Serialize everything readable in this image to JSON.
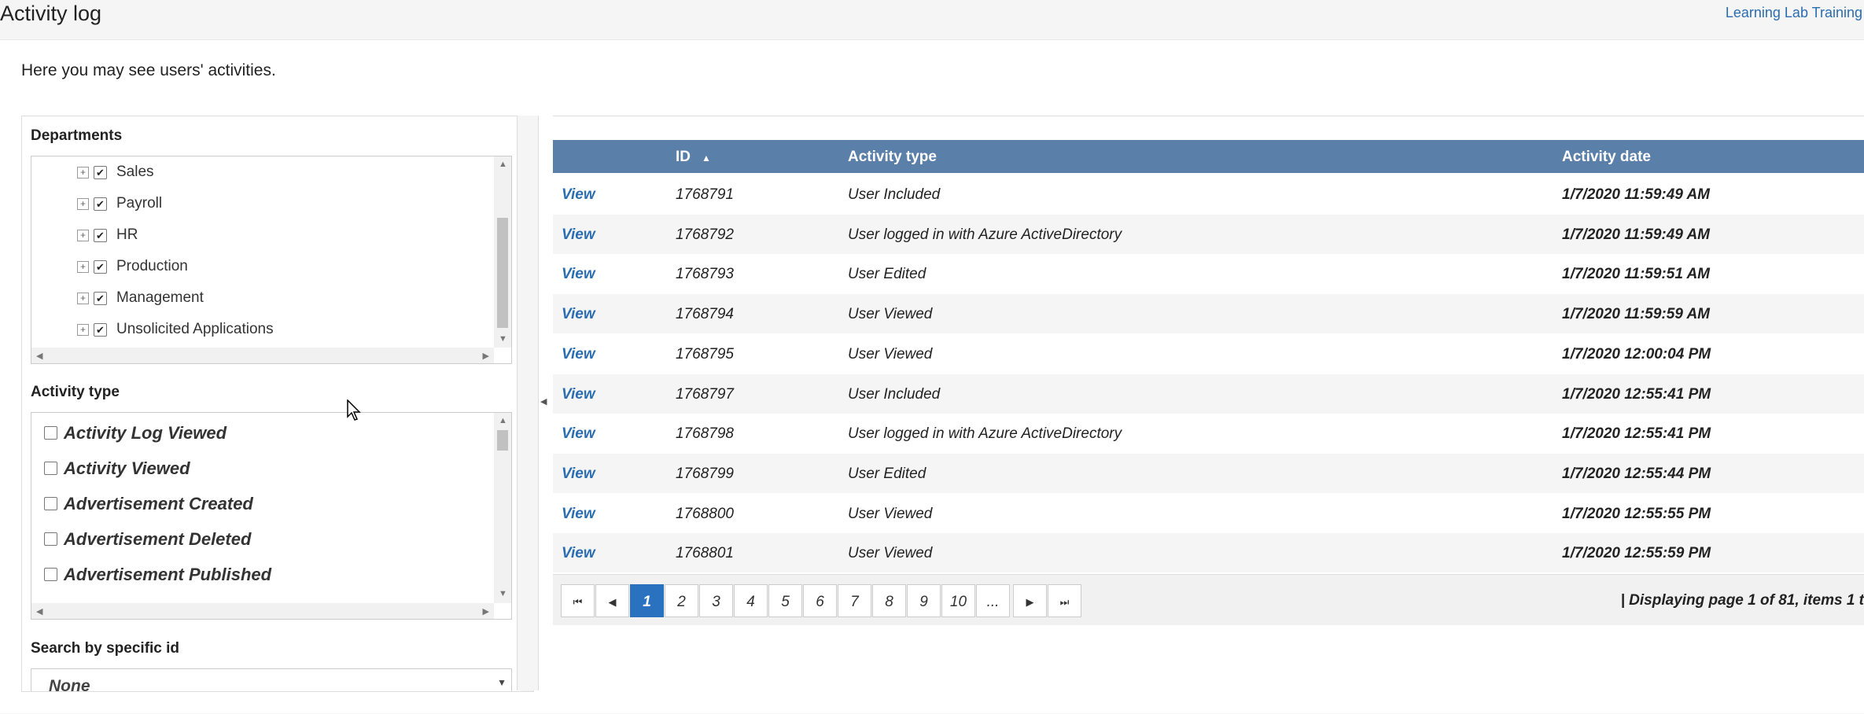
{
  "header": {
    "title": "Activity log",
    "tenant_link": "Learning Lab Training"
  },
  "intro_text": "Here you may see users' activities.",
  "filters": {
    "departments": {
      "label": "Departments",
      "items": [
        {
          "label": "Sales",
          "checked": true
        },
        {
          "label": "Payroll",
          "checked": true
        },
        {
          "label": "HR",
          "checked": true
        },
        {
          "label": "Production",
          "checked": true
        },
        {
          "label": "Management",
          "checked": true
        },
        {
          "label": "Unsolicited Applications",
          "checked": true
        }
      ]
    },
    "activity_type": {
      "label": "Activity type",
      "items": [
        {
          "label": "Activity Log Viewed",
          "checked": false
        },
        {
          "label": "Activity Viewed",
          "checked": false
        },
        {
          "label": "Advertisement Created",
          "checked": false
        },
        {
          "label": "Advertisement Deleted",
          "checked": false
        },
        {
          "label": "Advertisement Published",
          "checked": false
        }
      ]
    },
    "search_by_id": {
      "label": "Search by specific id",
      "selected": "None"
    }
  },
  "grid": {
    "columns": {
      "id": "ID",
      "activity_type": "Activity type",
      "activity_date": "Activity date"
    },
    "sort_indicator": "▲",
    "rows": [
      {
        "action": "View",
        "id": "1768791",
        "type": "User Included",
        "date": "1/7/2020 11:59:49 AM"
      },
      {
        "action": "View",
        "id": "1768792",
        "type": "User logged in with Azure ActiveDirectory",
        "date": "1/7/2020 11:59:49 AM"
      },
      {
        "action": "View",
        "id": "1768793",
        "type": "User Edited",
        "date": "1/7/2020 11:59:51 AM"
      },
      {
        "action": "View",
        "id": "1768794",
        "type": "User Viewed",
        "date": "1/7/2020 11:59:59 AM"
      },
      {
        "action": "View",
        "id": "1768795",
        "type": "User Viewed",
        "date": "1/7/2020 12:00:04 PM"
      },
      {
        "action": "View",
        "id": "1768797",
        "type": "User Included",
        "date": "1/7/2020 12:55:41 PM"
      },
      {
        "action": "View",
        "id": "1768798",
        "type": "User logged in with Azure ActiveDirectory",
        "date": "1/7/2020 12:55:41 PM"
      },
      {
        "action": "View",
        "id": "1768799",
        "type": "User Edited",
        "date": "1/7/2020 12:55:44 PM"
      },
      {
        "action": "View",
        "id": "1768800",
        "type": "User Viewed",
        "date": "1/7/2020 12:55:55 PM"
      },
      {
        "action": "View",
        "id": "1768801",
        "type": "User Viewed",
        "date": "1/7/2020 12:55:59 PM"
      }
    ]
  },
  "pager": {
    "first": "⏮",
    "prev": "◀",
    "next": "▶",
    "last": "⏭",
    "pages": [
      "1",
      "2",
      "3",
      "4",
      "5",
      "6",
      "7",
      "8",
      "9",
      "10",
      "..."
    ],
    "current": "1",
    "info": "| Displaying page 1 of 81, items 1 t"
  }
}
